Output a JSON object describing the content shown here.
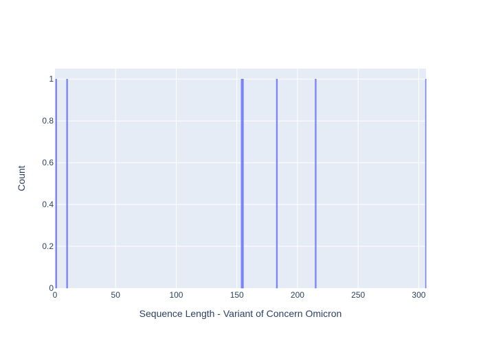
{
  "chart_data": {
    "type": "bar",
    "xlabel": "Sequence Length - Variant of Concern Omicron",
    "ylabel": "Count",
    "xlim": [
      0,
      306
    ],
    "ylim": [
      0,
      1.05
    ],
    "x_ticks": [
      0,
      50,
      100,
      150,
      200,
      250,
      300
    ],
    "y_ticks": [
      0,
      0.2,
      0.4,
      0.6,
      0.8,
      1
    ],
    "y_tick_labels": [
      "0",
      "0.2",
      "0.4",
      "0.6",
      "0.8",
      "1"
    ],
    "grid": true,
    "bars": [
      {
        "x": 1,
        "count": 1
      },
      {
        "x": 10,
        "count": 1
      },
      {
        "x": 154,
        "count": 1
      },
      {
        "x": 155,
        "count": 1
      },
      {
        "x": 183,
        "count": 1
      },
      {
        "x": 215,
        "count": 1
      },
      {
        "x": 306,
        "count": 1
      }
    ],
    "colors": {
      "bar": "#636efa",
      "plot_background": "#e5ecf6",
      "gridline": "#ffffff",
      "text": "#2a3f5f"
    }
  }
}
